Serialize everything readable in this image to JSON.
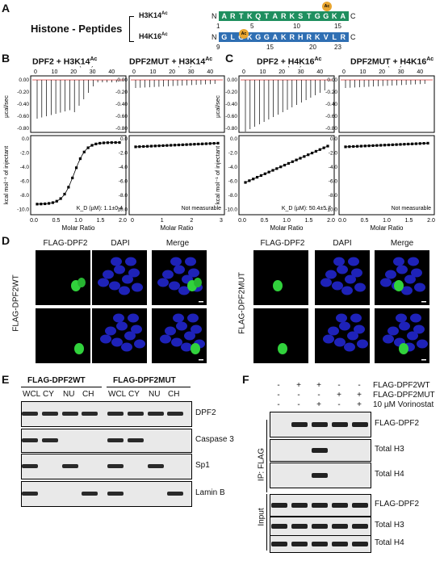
{
  "panels": {
    "A": "A",
    "B": "B",
    "C": "C",
    "D": "D",
    "E": "E",
    "F": "F"
  },
  "panelA": {
    "group_label": "Histone - Peptides",
    "peptides": [
      {
        "name": "H3K14",
        "sup": "Ac",
        "n_term": "N",
        "c_term": "C",
        "sequence": [
          "A",
          "R",
          "T",
          "K",
          "Q",
          "T",
          "A",
          "R",
          "K",
          "S",
          "T",
          "G",
          "G",
          "K",
          "A"
        ],
        "color": "#1f8f5f",
        "acetyl_label": "Ac",
        "ticks": [
          "1",
          "5",
          "10",
          "15"
        ]
      },
      {
        "name": "H4K16",
        "sup": "Ac",
        "n_term": "N",
        "c_term": "C",
        "sequence": [
          "G",
          "L",
          "G",
          "K",
          "G",
          "G",
          "A",
          "K",
          "R",
          "H",
          "R",
          "K",
          "V",
          "L",
          "R"
        ],
        "color": "#2f6fb3",
        "acetyl_label": "Ac",
        "ticks": [
          "9",
          "15",
          "20",
          "23"
        ]
      }
    ]
  },
  "itc": {
    "time_label": "Time (min)",
    "molar_label": "Molar Ratio",
    "ucal_label": "µcal/sec",
    "kcal_label": "kcal mol⁻¹ of injectant",
    "plots": [
      {
        "title": "DPF2 + H3K14",
        "sup": "Ac",
        "time_ticks": [
          "0",
          "10",
          "20",
          "30",
          "40"
        ],
        "molar_ticks": [
          "0.0",
          "0.5",
          "1.0",
          "1.5",
          "2.0"
        ],
        "annotation": "K_D (µM): 1.1±0.4",
        "type": "sigmoid"
      },
      {
        "title": "DPF2MUT + H3K14",
        "sup": "Ac",
        "time_ticks": [
          "0",
          "10",
          "20",
          "30",
          "40"
        ],
        "molar_ticks": [
          "0",
          "1",
          "2",
          "3"
        ],
        "annotation": "Not measurable",
        "type": "flat"
      },
      {
        "title": "DPF2 + H4K16",
        "sup": "Ac",
        "time_ticks": [
          "0",
          "10",
          "20",
          "30",
          "40"
        ],
        "molar_ticks": [
          "0.0",
          "0.5",
          "1.0",
          "1.5",
          "2.0"
        ],
        "annotation": "K_D (µM): 50.4±5.7",
        "type": "hyper"
      },
      {
        "title": "DPF2MUT + H4K16",
        "sup": "Ac",
        "time_ticks": [
          "0",
          "10",
          "20",
          "30",
          "40"
        ],
        "molar_ticks": [
          "0.0",
          "0.5",
          "1.0",
          "1.5",
          "2.0"
        ],
        "annotation": "Not measurable",
        "type": "flat"
      }
    ],
    "top_y_ticks": [
      "0.00",
      "-0.20",
      "-0.40",
      "-0.60",
      "-0.80"
    ],
    "bot_y_ticks": [
      "0.0",
      "-2.0",
      "-4.0",
      "-6.0",
      "-8.0",
      "-10.0"
    ]
  },
  "panelD": {
    "col_labels": [
      "FLAG-DPF2",
      "DAPI",
      "Merge"
    ],
    "row_label_left": "FLAG-DPF2WT",
    "row_label_right": "FLAG-DPF2MUT"
  },
  "panelE": {
    "group_wt": "FLAG-DPF2WT",
    "group_mut": "FLAG-DPF2MUT",
    "lanes": [
      "WCL",
      "CY",
      "NU",
      "CH",
      "WCL",
      "CY",
      "NU",
      "CH"
    ],
    "blots": [
      "DPF2",
      "Caspase 3",
      "Sp1",
      "Lamin B"
    ]
  },
  "panelF": {
    "conditions": [
      {
        "label": "FLAG-DPF2WT",
        "signs": [
          "-",
          "+",
          "+",
          "-",
          "-"
        ]
      },
      {
        "label": "FLAG-DPF2MUT",
        "signs": [
          "-",
          "-",
          "-",
          "+",
          "+"
        ]
      },
      {
        "label": "10 µM Vorinostat",
        "signs": [
          "-",
          "-",
          "+",
          "-",
          "+"
        ]
      }
    ],
    "ip_label": "IP: FLAG",
    "input_label": "Input",
    "ip_blots": [
      "FLAG-DPF2",
      "Total H3",
      "Total H4"
    ],
    "input_blots": [
      "FLAG-DPF2",
      "Total H3",
      "Total H4"
    ]
  }
}
